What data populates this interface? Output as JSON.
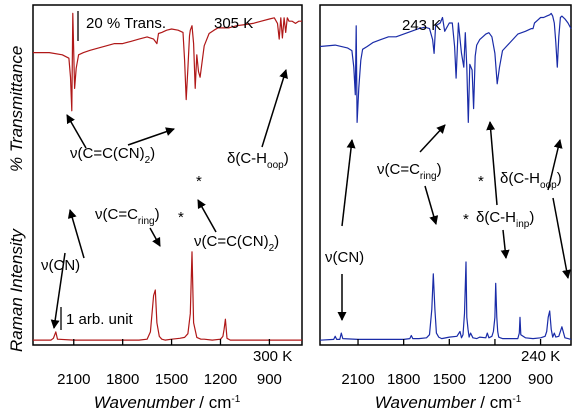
{
  "chart_data": [
    {
      "type": "line",
      "panel": "left",
      "color": "#b01818",
      "xlabel": "Wavenumber",
      "xunit": "cm",
      "xunit_exp": "-1",
      "ylabel_top": "% Transmittance",
      "ylabel_bottom": "Raman Intensity",
      "xlim": [
        2350,
        700
      ],
      "xticks": [
        "2100",
        "1800",
        "1500",
        "1200",
        "900"
      ],
      "ir_temp": "305 K",
      "raman_temp": "300 K",
      "ir_scale": "20 % Trans.",
      "raman_scale": "1 arb. unit",
      "series": [
        {
          "role": "ir",
          "x": [
            2350,
            2250,
            2170,
            2130,
            2120,
            2112,
            2106,
            2095,
            2085,
            2070,
            2040,
            2000,
            1950,
            1900,
            1850,
            1800,
            1750,
            1700,
            1650,
            1610,
            1590,
            1580,
            1560,
            1545,
            1530,
            1500,
            1460,
            1430,
            1420,
            1410,
            1400,
            1390,
            1385,
            1375,
            1365,
            1355,
            1345,
            1335,
            1325,
            1300,
            1270,
            1240,
            1215,
            1200,
            1185,
            1150,
            1100,
            1050,
            1000,
            950,
            900,
            870,
            850,
            840,
            830,
            820,
            810,
            800,
            790,
            780,
            760,
            740,
            720,
            700
          ],
          "y": [
            62,
            62,
            60,
            57,
            40,
            10,
            97,
            30,
            48,
            60,
            62,
            64,
            66,
            68,
            70,
            70,
            72,
            74,
            76,
            74,
            70,
            79,
            80,
            81,
            82,
            83,
            82,
            80,
            55,
            20,
            48,
            77,
            82,
            86,
            70,
            30,
            60,
            45,
            40,
            68,
            79,
            82,
            84,
            84,
            84,
            84,
            86,
            87,
            88,
            90,
            92,
            93,
            88,
            74,
            93,
            75,
            93,
            80,
            93,
            90,
            90,
            88,
            90,
            90
          ]
        },
        {
          "role": "raman",
          "x": [
            2350,
            2240,
            2225,
            2210,
            2200,
            2100,
            2000,
            1900,
            1800,
            1700,
            1650,
            1630,
            1610,
            1600,
            1590,
            1575,
            1560,
            1540,
            1500,
            1450,
            1420,
            1400,
            1385,
            1375,
            1365,
            1345,
            1320,
            1300,
            1250,
            1200,
            1185,
            1178,
            1170,
            1160,
            1140,
            1100,
            1000,
            900,
            800,
            700
          ],
          "y": [
            1,
            1,
            3,
            10,
            2,
            1,
            1,
            1,
            1,
            1,
            2,
            10,
            50,
            56,
            20,
            5,
            2,
            1,
            2,
            3,
            4,
            8,
            30,
            98,
            20,
            4,
            2,
            2,
            1,
            2,
            5,
            13,
            24,
            3,
            1,
            1,
            1,
            1,
            1,
            1
          ]
        }
      ],
      "annotations": [
        {
          "base": "ν(C=C(CN)",
          "sub": "",
          "tail": "2",
          "close": ")"
        },
        {
          "base": "ν(C=C",
          "sub": "ring",
          "tail": ")"
        },
        {
          "base": "δ(C-H",
          "sub": "oop",
          "tail": ")"
        },
        {
          "base": "ν(CN)"
        },
        {
          "base": "ν(C=C(CN)",
          "sub": "",
          "tail": "2",
          "close": ")"
        },
        {
          "base": "*"
        },
        {
          "base": "*"
        }
      ]
    },
    {
      "type": "line",
      "panel": "right",
      "color": "#1a2ca8",
      "xlabel": "Wavenumber",
      "xunit": "cm",
      "xunit_exp": "-1",
      "xlim": [
        2350,
        700
      ],
      "xticks": [
        "2100",
        "1800",
        "1500",
        "1200",
        "900"
      ],
      "ir_temp": "243 K",
      "raman_temp": "240 K",
      "series": [
        {
          "role": "ir",
          "x": [
            2350,
            2250,
            2170,
            2140,
            2128,
            2118,
            2112,
            2106,
            2095,
            2082,
            2070,
            2040,
            2000,
            1950,
            1900,
            1850,
            1800,
            1750,
            1700,
            1660,
            1630,
            1610,
            1600,
            1590,
            1575,
            1560,
            1545,
            1530,
            1500,
            1480,
            1465,
            1455,
            1440,
            1420,
            1405,
            1395,
            1385,
            1375,
            1365,
            1350,
            1340,
            1330,
            1320,
            1300,
            1280,
            1260,
            1240,
            1220,
            1200,
            1185,
            1170,
            1150,
            1100,
            1050,
            1000,
            960,
            950,
            940,
            920,
            900,
            880,
            860,
            840,
            830,
            820,
            810,
            800,
            790,
            780,
            770,
            760,
            740,
            720,
            700
          ],
          "y": [
            75,
            76,
            74,
            72,
            60,
            40,
            90,
            20,
            45,
            65,
            73,
            75,
            78,
            80,
            82,
            82,
            84,
            86,
            88,
            89,
            88,
            80,
            70,
            90,
            91,
            92,
            96,
            86,
            92,
            92,
            75,
            52,
            92,
            70,
            60,
            85,
            60,
            20,
            62,
            58,
            30,
            68,
            76,
            80,
            82,
            84,
            85,
            82,
            70,
            48,
            60,
            72,
            78,
            84,
            86,
            88,
            88,
            92,
            94,
            96,
            96,
            97,
            98,
            99,
            97,
            92,
            78,
            60,
            82,
            96,
            97,
            95,
            92,
            88
          ]
        },
        {
          "role": "raman",
          "x": [
            2350,
            2260,
            2250,
            2240,
            2220,
            2210,
            2200,
            2100,
            2000,
            1900,
            1800,
            1760,
            1750,
            1740,
            1700,
            1650,
            1630,
            1615,
            1605,
            1595,
            1585,
            1570,
            1550,
            1500,
            1450,
            1430,
            1420,
            1410,
            1400,
            1390,
            1385,
            1377,
            1370,
            1360,
            1345,
            1320,
            1300,
            1260,
            1250,
            1240,
            1220,
            1210,
            1200,
            1195,
            1188,
            1182,
            1175,
            1165,
            1150,
            1100,
            1050,
            1040,
            1035,
            1030,
            1000,
            950,
            900,
            870,
            860,
            850,
            840,
            830,
            820,
            810,
            800,
            780,
            760,
            740,
            720,
            700
          ],
          "y": [
            1,
            2,
            6,
            2,
            2,
            10,
            3,
            2,
            2,
            2,
            2,
            3,
            7,
            3,
            3,
            4,
            8,
            40,
            85,
            40,
            10,
            5,
            3,
            5,
            6,
            12,
            4,
            8,
            35,
            100,
            30,
            15,
            5,
            10,
            4,
            3,
            5,
            4,
            10,
            4,
            6,
            12,
            30,
            73,
            30,
            12,
            5,
            4,
            3,
            3,
            3,
            10,
            30,
            8,
            4,
            3,
            4,
            6,
            12,
            30,
            38,
            15,
            5,
            10,
            5,
            6,
            18,
            4,
            3,
            2
          ]
        }
      ],
      "annotations": [
        {
          "base": "ν(C=C",
          "sub": "ring",
          "tail": ")"
        },
        {
          "base": "δ(C-H",
          "sub": "oop",
          "tail": ")"
        },
        {
          "base": "δ(C-H",
          "sub": "inp",
          "tail": ")"
        },
        {
          "base": "ν(CN)"
        },
        {
          "base": "*"
        },
        {
          "base": "*"
        }
      ]
    }
  ]
}
